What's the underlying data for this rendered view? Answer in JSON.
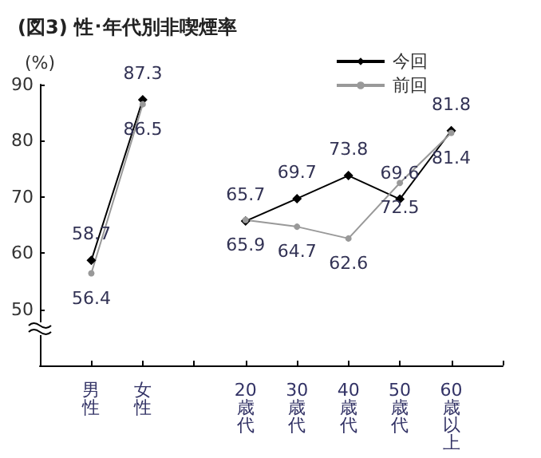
{
  "chart_data": {
    "type": "line",
    "title": "(図3) 性･年代別非喫煙率",
    "ylabel": "(%)",
    "categories": [
      null,
      "男性",
      "女性",
      null,
      "20歳代",
      "30歳代",
      "40歳代",
      "50歳代",
      "60歳以上",
      null
    ],
    "series": [
      {
        "name": "今回",
        "color": "#000000",
        "marker": "diamond",
        "values": [
          null,
          58.7,
          87.3,
          null,
          65.7,
          69.7,
          73.8,
          69.6,
          81.8,
          null
        ]
      },
      {
        "name": "前回",
        "color": "#999999",
        "marker": "circle",
        "values": [
          null,
          56.4,
          86.5,
          null,
          65.9,
          64.7,
          62.6,
          72.5,
          81.4,
          null
        ]
      }
    ],
    "ylim": [
      40,
      90
    ],
    "yticks": [
      50,
      60,
      70,
      80,
      90
    ],
    "data_labels": true,
    "legend": "top right",
    "grid": false
  }
}
